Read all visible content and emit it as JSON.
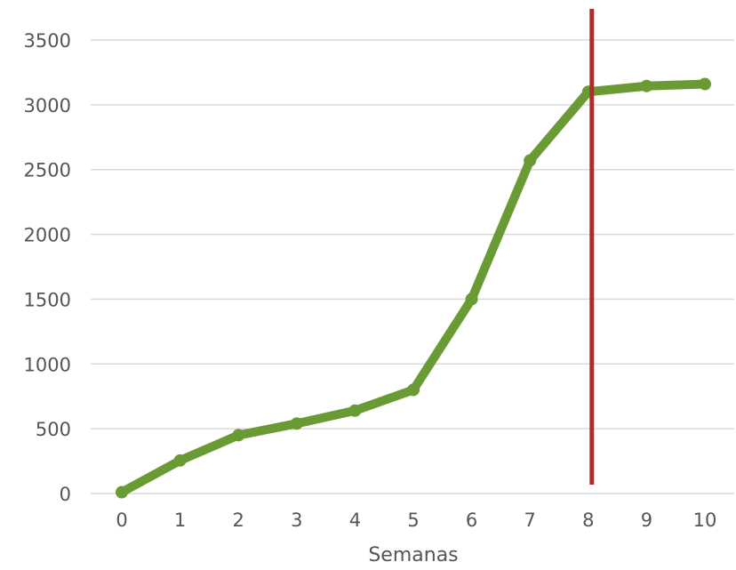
{
  "chart_data": {
    "type": "line",
    "title": "",
    "xlabel": "Semanas",
    "ylabel": "",
    "x": [
      0,
      1,
      2,
      3,
      4,
      5,
      6,
      7,
      8,
      9,
      10
    ],
    "series": [
      {
        "values": [
          10,
          255,
          450,
          540,
          640,
          800,
          1500,
          2570,
          3100,
          3145,
          3160
        ],
        "color": "#6a9a33"
      }
    ],
    "ylim": [
      0,
      3500
    ],
    "yticks": [
      "0",
      "500",
      "1000",
      "1500",
      "2000",
      "2500",
      "3000",
      "3500"
    ],
    "xticks": [
      "0",
      "1",
      "2",
      "3",
      "4",
      "5",
      "6",
      "7",
      "8",
      "9",
      "10"
    ],
    "grid": "horizontal",
    "legend": "none",
    "marker_line": {
      "x": 8,
      "color": "#b22a2a"
    },
    "gridline_color": "#d9d9d9"
  }
}
